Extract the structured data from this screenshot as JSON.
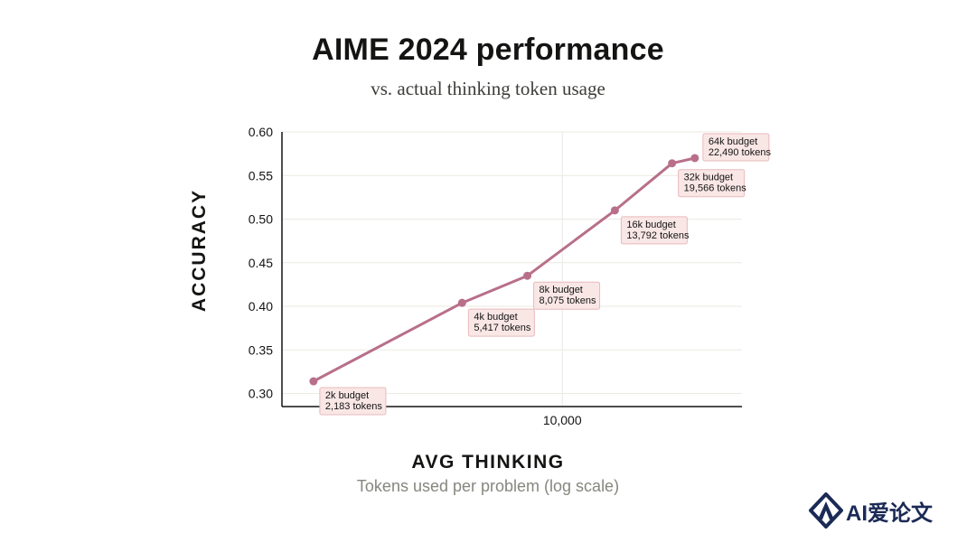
{
  "chart_data": {
    "type": "line",
    "title": "AIME 2024 performance",
    "subtitle": "vs. actual thinking token usage",
    "ylabel": "ACCURACY",
    "xlabel": "AVG THINKING",
    "xlabel_sub": "Tokens used per problem (log scale)",
    "x_scale": "log",
    "xlim": [
      1800,
      30000
    ],
    "ylim": [
      0.285,
      0.6
    ],
    "y_ticks": [
      "0.30",
      "0.35",
      "0.40",
      "0.45",
      "0.50",
      "0.55",
      "0.60"
    ],
    "x_ticks": [
      {
        "value": 10000,
        "label": "10,000"
      }
    ],
    "grid": true,
    "line_color": "#b86f8a",
    "series": [
      {
        "x": [
          2183,
          5417,
          8075,
          13792,
          19566,
          22490
        ],
        "y": [
          0.314,
          0.404,
          0.435,
          0.51,
          0.564,
          0.57
        ],
        "labels": [
          [
            "2k budget",
            "2,183 tokens"
          ],
          [
            "4k budget",
            "5,417 tokens"
          ],
          [
            "8k budget",
            "8,075 tokens"
          ],
          [
            "16k budget",
            "13,792 tokens"
          ],
          [
            "32k budget",
            "19,566 tokens"
          ],
          [
            "64k budget",
            "22,490 tokens"
          ]
        ]
      }
    ]
  },
  "logo": {
    "text": "AI爱论文",
    "icon": "ai-logo-icon"
  }
}
